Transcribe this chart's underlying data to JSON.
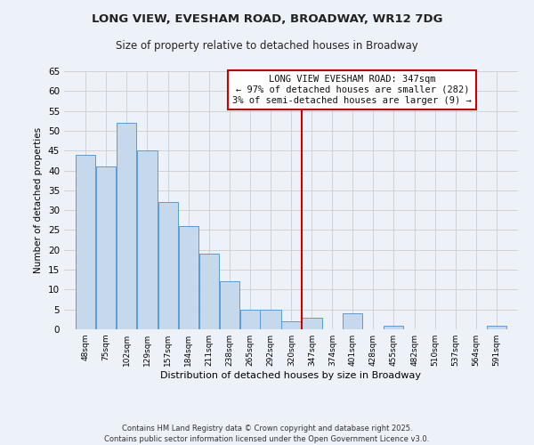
{
  "title": "LONG VIEW, EVESHAM ROAD, BROADWAY, WR12 7DG",
  "subtitle": "Size of property relative to detached houses in Broadway",
  "xlabel": "Distribution of detached houses by size in Broadway",
  "ylabel": "Number of detached properties",
  "bar_labels": [
    "48sqm",
    "75sqm",
    "102sqm",
    "129sqm",
    "157sqm",
    "184sqm",
    "211sqm",
    "238sqm",
    "265sqm",
    "292sqm",
    "320sqm",
    "347sqm",
    "374sqm",
    "401sqm",
    "428sqm",
    "455sqm",
    "482sqm",
    "510sqm",
    "537sqm",
    "564sqm",
    "591sqm"
  ],
  "bar_values": [
    44,
    41,
    52,
    45,
    32,
    26,
    19,
    12,
    5,
    5,
    2,
    3,
    0,
    4,
    0,
    1,
    0,
    0,
    0,
    0,
    1
  ],
  "bar_edges": [
    48,
    75,
    102,
    129,
    157,
    184,
    211,
    238,
    265,
    292,
    320,
    347,
    374,
    401,
    428,
    455,
    482,
    510,
    537,
    564,
    591,
    618
  ],
  "bar_color": "#c6d9ec",
  "bar_edge_color": "#5b9bd5",
  "vline_x": 347,
  "vline_color": "#cc0000",
  "ylim": [
    0,
    65
  ],
  "yticks": [
    0,
    5,
    10,
    15,
    20,
    25,
    30,
    35,
    40,
    45,
    50,
    55,
    60,
    65
  ],
  "grid_color": "#cccccc",
  "bg_color": "#edf2f9",
  "annotation_title": "LONG VIEW EVESHAM ROAD: 347sqm",
  "annotation_line1": "← 97% of detached houses are smaller (282)",
  "annotation_line2": "3% of semi-detached houses are larger (9) →",
  "annotation_box_color": "#ffffff",
  "annotation_box_edge": "#cc0000",
  "footer1": "Contains HM Land Registry data © Crown copyright and database right 2025.",
  "footer2": "Contains public sector information licensed under the Open Government Licence v3.0.",
  "title_fontsize": 9.5,
  "subtitle_fontsize": 8.5,
  "annotation_fontsize": 7.5,
  "footer_fontsize": 6.0,
  "ylabel_fontsize": 7.5,
  "xlabel_fontsize": 8.0,
  "ytick_fontsize": 7.5,
  "xtick_fontsize": 6.5
}
